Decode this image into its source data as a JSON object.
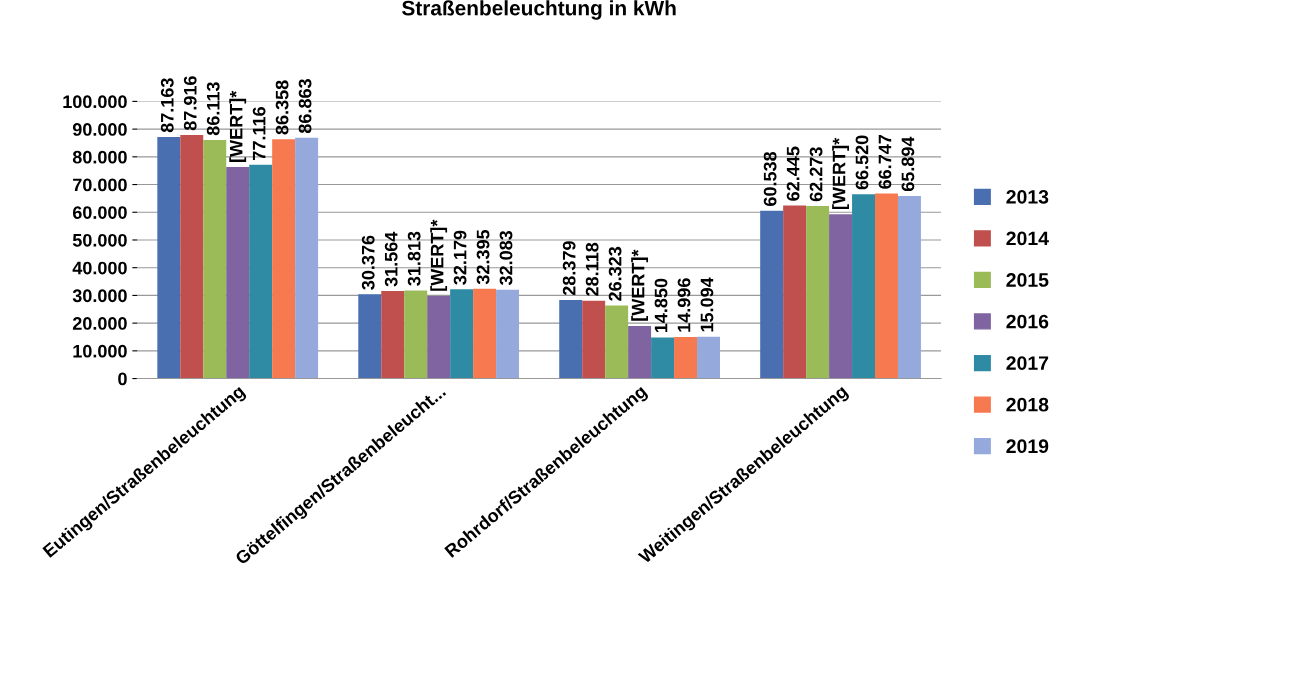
{
  "chart_data": {
    "type": "bar",
    "title": "Straßenbeleuchtung in kWh",
    "categories": [
      "Eutingen/Straßenbeleuchtung",
      "Göttelfingen/Straßenbeleucht...",
      "Rohrdorf/Straßenbeleuchtung",
      "Weitingen/Straßenbeleuchtung"
    ],
    "series": [
      {
        "name": "2013",
        "color": "#4a6fb0",
        "values": [
          87163,
          30376,
          28379,
          60538
        ],
        "value_labels": [
          "87.163",
          "30.376",
          "28.379",
          "60.538"
        ]
      },
      {
        "name": "2014",
        "color": "#c0504d",
        "values": [
          87916,
          31564,
          28118,
          62445
        ],
        "value_labels": [
          "87.916",
          "31.564",
          "28.118",
          "62.445"
        ]
      },
      {
        "name": "2015",
        "color": "#9bbb59",
        "values": [
          86113,
          31813,
          26323,
          62273
        ],
        "value_labels": [
          "86.113",
          "31.813",
          "26.323",
          "62.273"
        ]
      },
      {
        "name": "2016",
        "color": "#8064a2",
        "values": [
          76300,
          29800,
          19000,
          59300
        ],
        "value_labels": [
          "[WERT]*",
          "[WERT]*",
          "[WERT]*",
          "[WERT]*"
        ]
      },
      {
        "name": "2017",
        "color": "#2f8aa3",
        "values": [
          77116,
          32179,
          14850,
          66520
        ],
        "value_labels": [
          "77.116",
          "32.179",
          "14.850",
          "66.520"
        ]
      },
      {
        "name": "2018",
        "color": "#f7794f",
        "values": [
          86358,
          32395,
          14996,
          66747
        ],
        "value_labels": [
          "86.358",
          "32.395",
          "14.996",
          "66.747"
        ]
      },
      {
        "name": "2019",
        "color": "#95a9dd",
        "values": [
          86863,
          32083,
          15094,
          65894
        ],
        "value_labels": [
          "86.863",
          "32.083",
          "15.094",
          "65.894"
        ]
      }
    ],
    "ylim": [
      0,
      100000
    ],
    "yticks": [
      {
        "value": 0,
        "label": "0"
      },
      {
        "value": 10000,
        "label": "10.000"
      },
      {
        "value": 20000,
        "label": "20.000"
      },
      {
        "value": 30000,
        "label": "30.000"
      },
      {
        "value": 40000,
        "label": "40.000"
      },
      {
        "value": 50000,
        "label": "50.000"
      },
      {
        "value": 60000,
        "label": "60.000"
      },
      {
        "value": 70000,
        "label": "70.000"
      },
      {
        "value": 80000,
        "label": "80.000"
      },
      {
        "value": 90000,
        "label": "90.000"
      },
      {
        "value": 100000,
        "label": "100.000"
      }
    ],
    "grid": "y",
    "legend": "right"
  }
}
